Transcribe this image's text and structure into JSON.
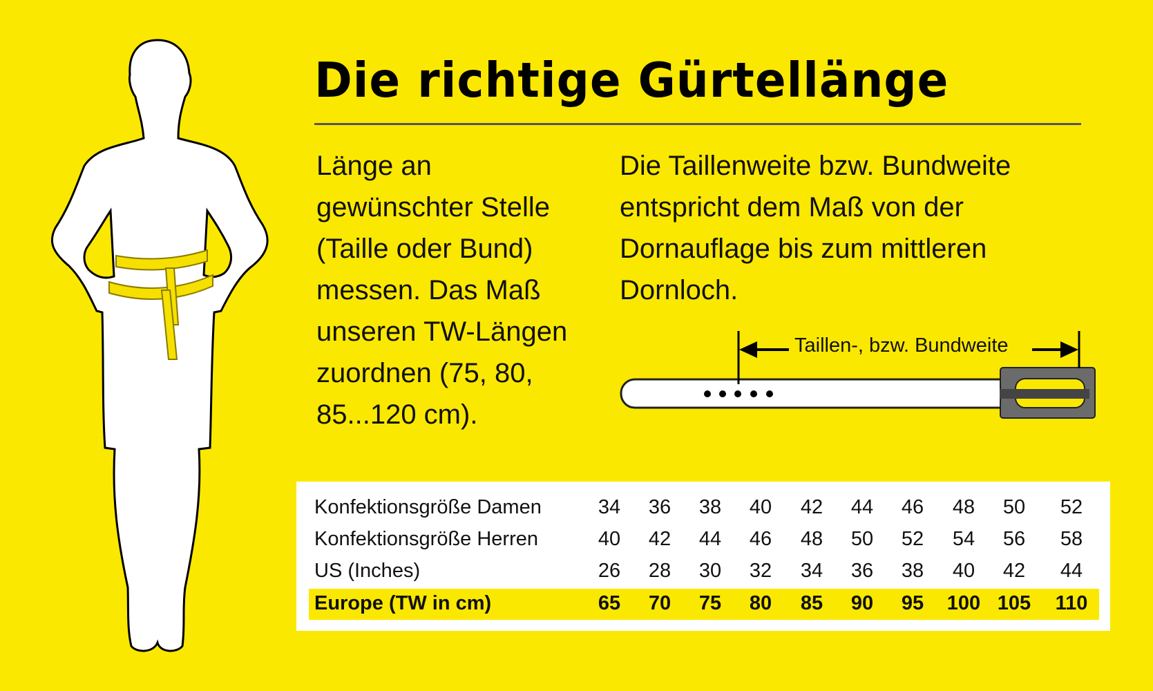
{
  "title": "Die richtige Gürtellänge",
  "left_paragraph": [
    "Länge an",
    "gewünschter Stelle",
    "(Taille oder Bund)",
    "messen. Das Maß",
    "unseren TW-Längen",
    "zuordnen (75, 80,",
    "85...120 cm)."
  ],
  "right_paragraph": [
    "Die Taillenweite bzw. Bundweite",
    "entspricht dem Maß von der",
    "Dornauflage bis zum mittleren",
    "Dornloch."
  ],
  "belt_label": "Taillen-, bzw. Bundweite",
  "colors": {
    "background": "#fbe800",
    "highlight": "#fbe800",
    "text": "#111111"
  },
  "table": {
    "rows": [
      {
        "label": "Konfektionsgröße Damen",
        "values": [
          "34",
          "36",
          "38",
          "40",
          "42",
          "44",
          "46",
          "48",
          "50",
          "52"
        ]
      },
      {
        "label": "Konfektionsgröße Herren",
        "values": [
          "40",
          "42",
          "44",
          "46",
          "48",
          "50",
          "52",
          "54",
          "56",
          "58"
        ]
      },
      {
        "label": "US (Inches)",
        "values": [
          "26",
          "28",
          "30",
          "32",
          "34",
          "36",
          "38",
          "40",
          "42",
          "44"
        ]
      },
      {
        "label": "Europe (TW in cm)",
        "values": [
          "65",
          "70",
          "75",
          "80",
          "85",
          "90",
          "95",
          "100",
          "105",
          "110"
        ],
        "highlighted": true
      }
    ]
  }
}
